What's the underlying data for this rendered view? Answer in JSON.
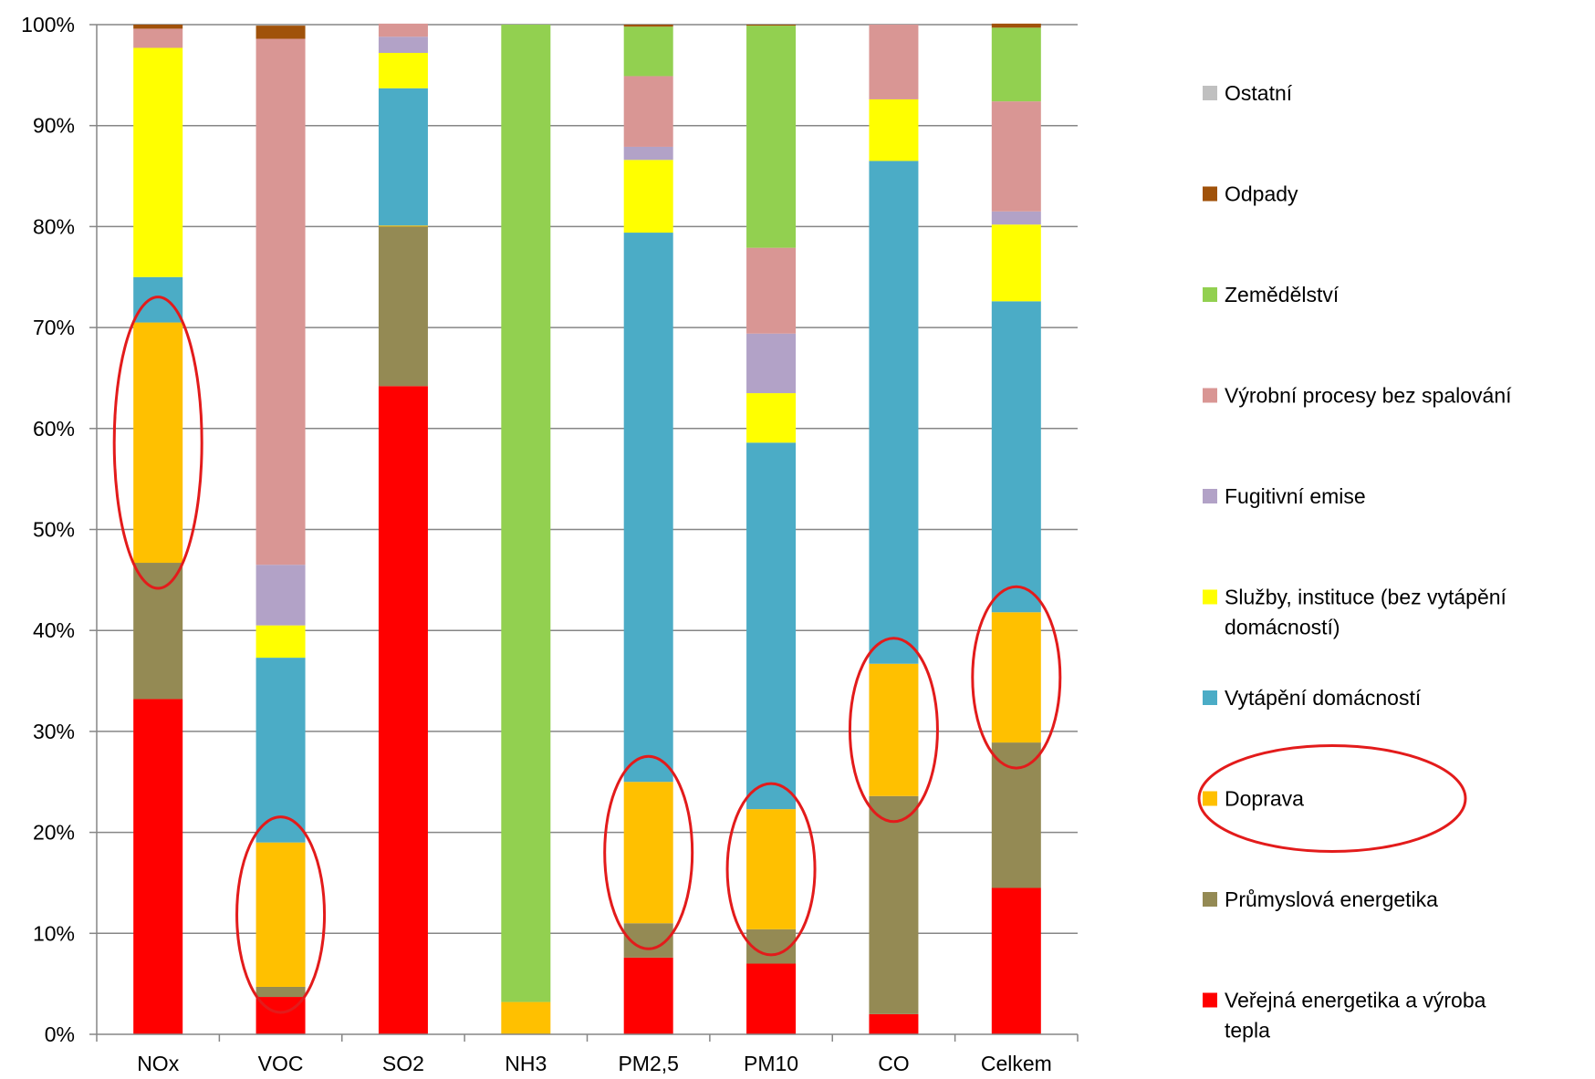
{
  "chart_data": {
    "type": "bar",
    "stacked": true,
    "percent_stacked": true,
    "categories": [
      "NOx",
      "VOC",
      "SO2",
      "NH3",
      "PM2,5",
      "PM10",
      "CO",
      "Celkem"
    ],
    "y_ticks": [
      "0%",
      "10%",
      "20%",
      "30%",
      "40%",
      "50%",
      "60%",
      "70%",
      "80%",
      "90%",
      "100%"
    ],
    "ylim": [
      0,
      100
    ],
    "grid": true,
    "legend_position": "right",
    "series": [
      {
        "name": "Veřejná energetika a výroba tepla",
        "color": "#FF0000",
        "values": [
          33.2,
          3.7,
          64.2,
          0,
          7.6,
          7.0,
          2.0,
          14.5
        ]
      },
      {
        "name": "Průmyslová energetika",
        "color": "#948A54",
        "values": [
          13.5,
          1.0,
          15.8,
          0,
          3.4,
          3.4,
          21.6,
          14.4
        ]
      },
      {
        "name": "Doprava",
        "color": "#FFC000",
        "values": [
          23.8,
          14.3,
          0.1,
          3.2,
          14.0,
          11.9,
          13.1,
          12.9
        ]
      },
      {
        "name": "Vytápění domácností",
        "color": "#4BACC6",
        "values": [
          4.5,
          18.3,
          13.6,
          0,
          54.4,
          36.3,
          49.8,
          30.8
        ]
      },
      {
        "name": "Služby, instituce (bez vytápění domácností)",
        "color": "#FFFF00",
        "values": [
          22.7,
          3.2,
          3.5,
          0,
          7.2,
          4.9,
          6.1,
          7.6
        ]
      },
      {
        "name": "Fugitivní emise",
        "color": "#B2A2C7",
        "values": [
          0,
          6.0,
          1.6,
          0,
          1.3,
          5.9,
          0,
          1.3
        ]
      },
      {
        "name": "Výrobní procesy bez spalování",
        "color": "#D99694",
        "values": [
          1.9,
          52.1,
          1.3,
          0,
          7.0,
          8.5,
          7.4,
          10.9
        ]
      },
      {
        "name": "Zemědělství",
        "color": "#92D050",
        "values": [
          0,
          0,
          0,
          96.8,
          4.9,
          22.0,
          0,
          7.3
        ]
      },
      {
        "name": "Odpady",
        "color": "#A0520A",
        "values": [
          0.4,
          1.3,
          0,
          0,
          0.2,
          0.1,
          0,
          0.4
        ]
      },
      {
        "name": "Ostatní",
        "color": "#C0C0C0",
        "values": [
          0,
          0,
          0,
          0,
          0,
          0,
          0,
          0
        ]
      }
    ],
    "highlighted_series": "Doprava",
    "highlight_color": "#E31B1B"
  }
}
